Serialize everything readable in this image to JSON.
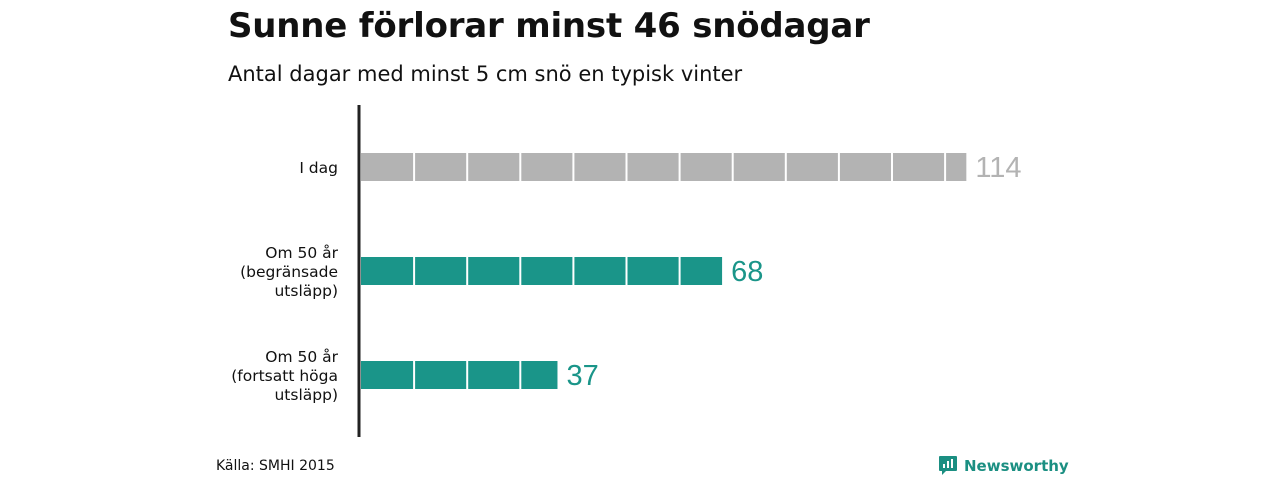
{
  "title": "Sunne förlorar minst 46 snödagar",
  "subtitle": "Antal dagar med minst 5 cm snö en typisk vinter",
  "source": "Källa: SMHI 2015",
  "brand": {
    "name": "Newsworthy",
    "icon": "newsworthy-logo-icon"
  },
  "colors": {
    "current": "#b3b3b3",
    "future": "#1a9589",
    "axis": "#222222",
    "brand": "#1b8f82"
  },
  "chart_data": {
    "type": "bar",
    "orientation": "horizontal",
    "unit_segment": 10,
    "xlim": [
      0,
      120
    ],
    "bars": [
      {
        "label": [
          "I dag"
        ],
        "value": 114,
        "color": "#b3b3b3",
        "value_label": "114"
      },
      {
        "label": [
          "Om 50 år",
          "(begränsade",
          "utsläpp)"
        ],
        "value": 68,
        "color": "#1a9589",
        "value_label": "68"
      },
      {
        "label": [
          "Om 50 år",
          "(fortsatt höga",
          "utsläpp)"
        ],
        "value": 37,
        "color": "#1a9589",
        "value_label": "37"
      }
    ]
  }
}
